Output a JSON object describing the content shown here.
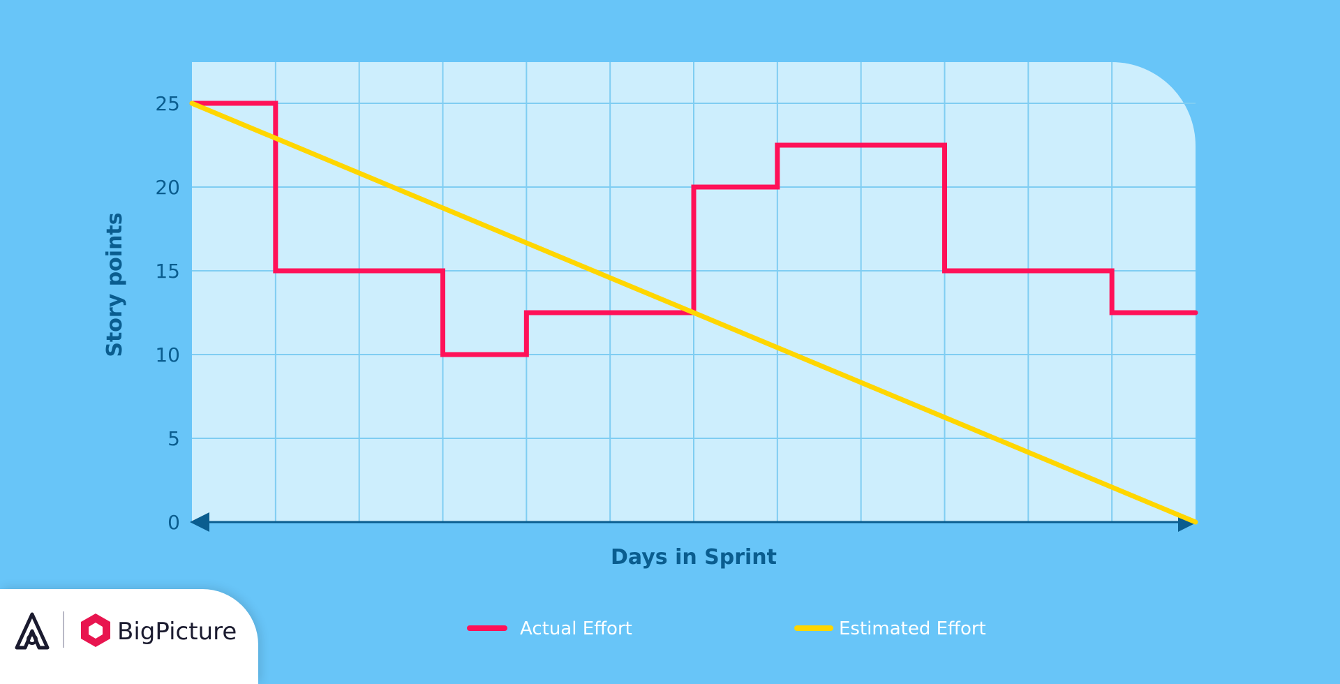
{
  "chart_data": {
    "type": "line",
    "xlabel": "Days in Sprint",
    "ylabel": "Story points",
    "xlim": [
      0,
      12
    ],
    "ylim": [
      0,
      27.5
    ],
    "yticks": [
      0,
      5,
      10,
      15,
      20,
      25
    ],
    "grid": true,
    "legend_position": "bottom",
    "series": [
      {
        "name": "Actual Effort",
        "color": "#ff1158",
        "step": true,
        "points": [
          [
            0,
            25
          ],
          [
            1,
            15
          ],
          [
            2,
            15
          ],
          [
            3,
            10
          ],
          [
            4,
            12.5
          ],
          [
            5,
            12.5
          ],
          [
            6,
            20
          ],
          [
            7,
            22.5
          ],
          [
            8,
            22.5
          ],
          [
            9,
            15
          ],
          [
            10,
            15
          ],
          [
            11,
            12.5
          ],
          [
            12,
            12.5
          ]
        ]
      },
      {
        "name": "Estimated Effort",
        "color": "#ffd600",
        "step": false,
        "points": [
          [
            0,
            25
          ],
          [
            12,
            0
          ]
        ]
      }
    ]
  },
  "brand": {
    "name": "BigPicture",
    "accent_color": "#e8154f"
  }
}
